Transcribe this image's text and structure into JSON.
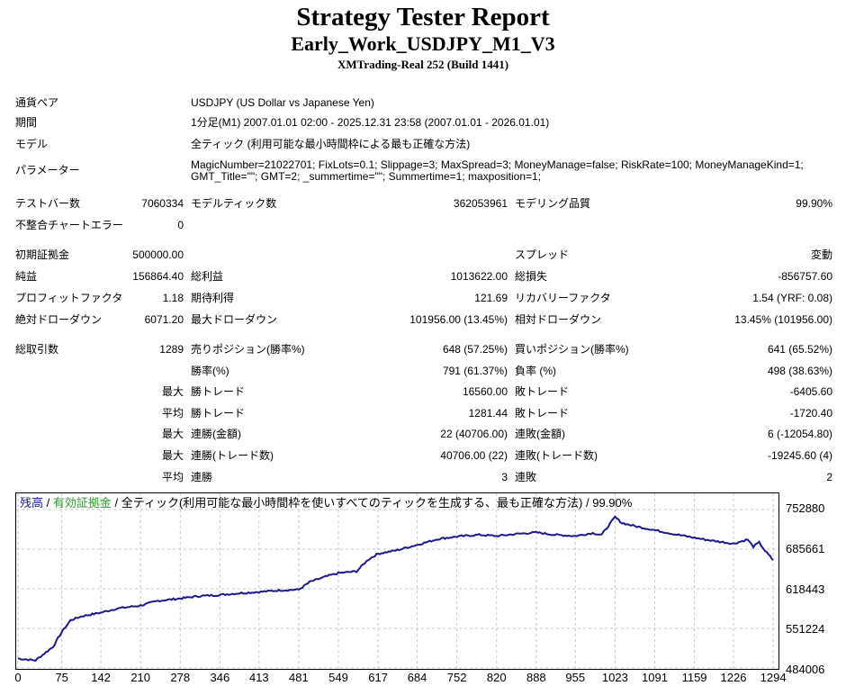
{
  "header": {
    "title": "Strategy Tester Report",
    "subtitle": "Early_Work_USDJPY_M1_V3",
    "server": "XMTrading-Real 252 (Build 1441)"
  },
  "info": {
    "pair_label": "通貨ペア",
    "pair_value": "USDJPY (US Dollar vs Japanese Yen)",
    "period_label": "期間",
    "period_value": "1分足(M1) 2007.01.01 02:00 - 2025.12.31 23:58 (2007.01.01 - 2026.01.01)",
    "model_label": "モデル",
    "model_value": "全ティック (利用可能な最小時間枠による最も正確な方法)",
    "params_label": "パラメーター",
    "params_value": "MagicNumber=21022701; FixLots=0.1; Slippage=3; MaxSpread=3; MoneyManage=false; RiskRate=100; MoneyManageKind=1; GMT_Title=\"\"; GMT=2; _summertime=\"\"; Summertime=1; maxposition=1;"
  },
  "stats": {
    "bars_label": "テストバー数",
    "bars_value": "7060334",
    "ticks_label": "モデルティック数",
    "ticks_value": "362053961",
    "quality_label": "モデリング品質",
    "quality_value": "99.90%",
    "errors_label": "不整合チャートエラー",
    "errors_value": "0",
    "deposit_label": "初期証拠金",
    "deposit_value": "500000.00",
    "spread_label": "スプレッド",
    "spread_value": "変動",
    "net_label": "純益",
    "net_value": "156864.40",
    "gross_profit_label": "総利益",
    "gross_profit_value": "1013622.00",
    "gross_loss_label": "総損失",
    "gross_loss_value": "-856757.60",
    "pf_label": "プロフィットファクタ",
    "pf_value": "1.18",
    "payoff_label": "期待利得",
    "payoff_value": "121.69",
    "rf_label": "リカバリーファクタ",
    "rf_value": "1.54 (YRF: 0.08)",
    "abs_dd_label": "絶対ドローダウン",
    "abs_dd_value": "6071.20",
    "max_dd_label": "最大ドローダウン",
    "max_dd_value": "101956.00 (13.45%)",
    "rel_dd_label": "相対ドローダウン",
    "rel_dd_value": "13.45% (101956.00)",
    "total_label": "総取引数",
    "total_value": "1289",
    "short_label": "売りポジション(勝率%)",
    "short_value": "648 (57.25%)",
    "long_label": "買いポジション(勝率%)",
    "long_value": "641 (65.52%)",
    "winrate_label": "勝率(%)",
    "winrate_value": "791 (61.37%)",
    "lossrate_label": "負率 (%)",
    "lossrate_value": "498 (38.63%)",
    "max_prefix": "最大",
    "avg_prefix": "平均",
    "largest_win_label": "勝トレード",
    "largest_win_value": "16560.00",
    "largest_loss_label": "敗トレード",
    "largest_loss_value": "-6405.60",
    "avg_win_label": "勝トレード",
    "avg_win_value": "1281.44",
    "avg_loss_label": "敗トレード",
    "avg_loss_value": "-1720.40",
    "consec_wins_amt_label": "連勝(金額)",
    "consec_wins_amt_value": "22 (40706.00)",
    "consec_loss_amt_label": "連敗(金額)",
    "consec_loss_amt_value": "6 (-12054.80)",
    "consec_wins_trd_label": "連勝(トレード数)",
    "consec_wins_trd_value": "40706.00 (22)",
    "consec_loss_trd_label": "連敗(トレード数)",
    "consec_loss_trd_value": "-19245.60 (4)",
    "avg_consec_wins_label": "連勝",
    "avg_consec_wins_value": "3",
    "avg_consec_loss_label": "連敗",
    "avg_consec_loss_value": "2"
  },
  "chart_legend": {
    "balance": "残高",
    "sep1": " / ",
    "equity": "有効証拠金",
    "sep2": " / ",
    "rest": "全ティック(利用可能な最小時間枠を使いすべてのティックを生成する、最も正確な方法) / 99.90%"
  },
  "colors": {
    "balance_line": "#1a1a8c",
    "equity_legend": "#2e9b2e",
    "grid": "#c8c8c8"
  },
  "chart_data": {
    "type": "line",
    "series": [
      {
        "name": "残高",
        "x": [
          0,
          30,
          60,
          75,
          90,
          110,
          142,
          170,
          210,
          240,
          278,
          310,
          346,
          380,
          413,
          450,
          481,
          500,
          530,
          549,
          580,
          600,
          617,
          650,
          684,
          720,
          752,
          790,
          820,
          860,
          888,
          920,
          955,
          985,
          1000,
          1023,
          1035,
          1060,
          1091,
          1120,
          1159,
          1190,
          1226,
          1250,
          1260,
          1270,
          1280,
          1294
        ],
        "y": [
          500000,
          497000,
          520000,
          545000,
          565000,
          572000,
          578000,
          585000,
          590000,
          598000,
          602000,
          606000,
          608000,
          611000,
          613000,
          616000,
          617000,
          630000,
          640000,
          645000,
          648000,
          668000,
          678000,
          684000,
          693000,
          703000,
          707000,
          710000,
          708000,
          712000,
          714000,
          710000,
          708000,
          713000,
          710000,
          740000,
          730000,
          724000,
          718000,
          712000,
          705000,
          700000,
          695000,
          702000,
          690000,
          697000,
          683000,
          667000
        ]
      }
    ],
    "x_ticks": [
      "0",
      "75",
      "142",
      "210",
      "278",
      "346",
      "413",
      "481",
      "549",
      "617",
      "684",
      "752",
      "820",
      "888",
      "955",
      "1023",
      "1091",
      "1159",
      "1226",
      "1294"
    ],
    "y_ticks": [
      "752880",
      "685661",
      "618443",
      "551224",
      "484006"
    ],
    "xlim": [
      0,
      1300
    ],
    "ylim": [
      484006,
      752880
    ],
    "grid": true
  }
}
